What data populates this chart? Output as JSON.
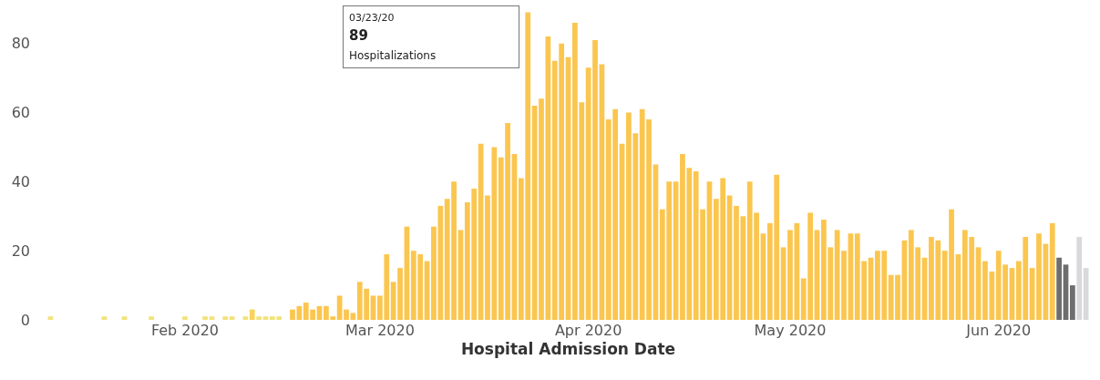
{
  "chart_data": {
    "type": "bar",
    "xlabel": "Hospital Admission Date",
    "x": [
      "2020-01-12",
      "2020-01-20",
      "2020-01-23",
      "2020-01-27",
      "2020-02-01",
      "2020-02-04",
      "2020-02-05",
      "2020-02-07",
      "2020-02-08",
      "2020-02-10",
      "2020-02-11",
      "2020-02-12",
      "2020-02-13",
      "2020-02-14",
      "2020-02-15",
      "2020-02-17",
      "2020-02-18",
      "2020-02-19",
      "2020-02-20",
      "2020-02-21",
      "2020-02-22",
      "2020-02-23",
      "2020-02-24",
      "2020-02-25",
      "2020-02-26",
      "2020-02-27",
      "2020-02-28",
      "2020-02-29",
      "2020-03-01",
      "2020-03-02",
      "2020-03-03",
      "2020-03-04",
      "2020-03-05",
      "2020-03-06",
      "2020-03-07",
      "2020-03-08",
      "2020-03-09",
      "2020-03-10",
      "2020-03-11",
      "2020-03-12",
      "2020-03-13",
      "2020-03-14",
      "2020-03-15",
      "2020-03-16",
      "2020-03-17",
      "2020-03-18",
      "2020-03-19",
      "2020-03-20",
      "2020-03-21",
      "2020-03-22",
      "2020-03-23",
      "2020-03-24",
      "2020-03-25",
      "2020-03-26",
      "2020-03-27",
      "2020-03-28",
      "2020-03-29",
      "2020-03-30",
      "2020-03-31",
      "2020-04-01",
      "2020-04-02",
      "2020-04-03",
      "2020-04-04",
      "2020-04-05",
      "2020-04-06",
      "2020-04-07",
      "2020-04-08",
      "2020-04-09",
      "2020-04-10",
      "2020-04-11",
      "2020-04-12",
      "2020-04-13",
      "2020-04-14",
      "2020-04-15",
      "2020-04-16",
      "2020-04-17",
      "2020-04-18",
      "2020-04-19",
      "2020-04-20",
      "2020-04-21",
      "2020-04-22",
      "2020-04-23",
      "2020-04-24",
      "2020-04-25",
      "2020-04-26",
      "2020-04-27",
      "2020-04-28",
      "2020-04-29",
      "2020-04-30",
      "2020-05-01",
      "2020-05-02",
      "2020-05-03",
      "2020-05-04",
      "2020-05-05",
      "2020-05-06",
      "2020-05-07",
      "2020-05-08",
      "2020-05-09",
      "2020-05-10",
      "2020-05-11",
      "2020-05-12",
      "2020-05-13",
      "2020-05-14",
      "2020-05-15",
      "2020-05-16",
      "2020-05-17",
      "2020-05-18",
      "2020-05-19",
      "2020-05-20",
      "2020-05-21",
      "2020-05-22",
      "2020-05-23",
      "2020-05-24",
      "2020-05-25",
      "2020-05-26",
      "2020-05-27",
      "2020-05-28",
      "2020-05-29",
      "2020-05-30",
      "2020-05-31",
      "2020-06-01",
      "2020-06-02",
      "2020-06-03",
      "2020-06-04",
      "2020-06-05",
      "2020-06-06",
      "2020-06-07",
      "2020-06-08",
      "2020-06-09",
      "2020-06-10",
      "2020-06-11",
      "2020-06-12",
      "2020-06-13",
      "2020-06-14"
    ],
    "values": [
      1,
      1,
      1,
      1,
      1,
      1,
      1,
      1,
      1,
      1,
      3,
      1,
      1,
      1,
      1,
      3,
      4,
      5,
      3,
      4,
      4,
      1,
      7,
      3,
      2,
      11,
      9,
      7,
      7,
      19,
      11,
      15,
      27,
      20,
      19,
      17,
      27,
      33,
      35,
      40,
      26,
      34,
      38,
      51,
      36,
      50,
      47,
      57,
      48,
      41,
      89,
      62,
      64,
      82,
      75,
      80,
      76,
      86,
      63,
      73,
      81,
      74,
      58,
      61,
      51,
      60,
      54,
      61,
      58,
      45,
      32,
      40,
      40,
      48,
      44,
      43,
      32,
      40,
      35,
      41,
      36,
      33,
      30,
      40,
      31,
      25,
      28,
      42,
      21,
      26,
      28,
      12,
      31,
      26,
      29,
      21,
      26,
      20,
      25,
      25,
      17,
      18,
      20,
      20,
      13,
      13,
      23,
      26,
      21,
      18,
      24,
      23,
      20,
      32,
      19,
      26,
      24,
      21,
      17,
      14,
      20,
      16,
      15,
      17,
      24,
      15,
      25,
      22,
      28,
      18,
      16,
      10,
      24,
      15
    ],
    "colors": [
      "#f2e27a",
      "#f2e27a",
      "#f2e27a",
      "#f2e27a",
      "#f2e27a",
      "#f2e27a",
      "#f2e27a",
      "#f2e27a",
      "#f2e27a",
      "#f2e27a",
      "#f8d25c",
      "#f2e27a",
      "#f2e27a",
      "#f2e27a",
      "#f2e27a",
      "#fbc64f",
      "#fbc64f",
      "#fbc64f",
      "#fbc64f",
      "#fbc64f",
      "#fbc64f",
      "#fbc64f",
      "#fbc64f",
      "#fbc64f",
      "#fbc64f",
      "#fbc64f",
      "#fbc64f",
      "#fbc64f",
      "#fbc64f",
      "#fbc64f",
      "#fbc64f",
      "#fbc64f",
      "#fbc64f",
      "#fbc64f",
      "#fbc64f",
      "#fbc64f",
      "#fbc64f",
      "#fbc64f",
      "#fbc64f",
      "#fbc64f",
      "#fbc64f",
      "#fbc64f",
      "#fbc64f",
      "#fbc64f",
      "#fbc64f",
      "#fbc64f",
      "#fbc64f",
      "#fbc64f",
      "#fbc64f",
      "#fbc64f",
      "#fbc64f",
      "#fbc64f",
      "#fbc64f",
      "#fbc64f",
      "#fbc64f",
      "#fbc64f",
      "#fbc64f",
      "#fbc64f",
      "#fbc64f",
      "#fbc64f",
      "#fbc64f",
      "#fbc64f",
      "#fbc64f",
      "#fbc64f",
      "#fbc64f",
      "#fbc64f",
      "#fbc64f",
      "#fbc64f",
      "#fbc64f",
      "#fbc64f",
      "#fbc64f",
      "#fbc64f",
      "#fbc64f",
      "#fbc64f",
      "#fbc64f",
      "#fbc64f",
      "#fbc64f",
      "#fbc64f",
      "#fbc64f",
      "#fbc64f",
      "#fbc64f",
      "#fbc64f",
      "#fbc64f",
      "#fbc64f",
      "#fbc64f",
      "#fbc64f",
      "#fbc64f",
      "#fbc64f",
      "#fbc64f",
      "#fbc64f",
      "#fbc64f",
      "#fbc64f",
      "#fbc64f",
      "#fbc64f",
      "#fbc64f",
      "#fbc64f",
      "#fbc64f",
      "#fbc64f",
      "#fbc64f",
      "#fbc64f",
      "#fbc64f",
      "#fbc64f",
      "#fbc64f",
      "#fbc64f",
      "#fbc64f",
      "#fbc64f",
      "#fbc64f",
      "#fbc64f",
      "#fbc64f",
      "#fbc64f",
      "#fbc64f",
      "#fbc64f",
      "#fbc64f",
      "#fbc64f",
      "#fbc64f",
      "#fbc64f",
      "#fbc64f",
      "#fbc64f",
      "#fbc64f",
      "#fbc64f",
      "#fbc64f",
      "#fbc64f",
      "#fbc64f",
      "#fbc64f",
      "#fbc64f",
      "#fbc64f",
      "#fbc64f",
      "#fbc64f",
      "#fbc64f",
      "#6e6e6e",
      "#6e6e6e",
      "#6e6e6e",
      "#d9d9dc",
      "#d9d9dc"
    ],
    "xlim": [
      "2020-01-11",
      "2020-06-15"
    ],
    "xticks": [
      {
        "value": "2020-02-01",
        "label": "Feb 2020"
      },
      {
        "value": "2020-03-01",
        "label": "Mar 2020"
      },
      {
        "value": "2020-04-01",
        "label": "Apr 2020"
      },
      {
        "value": "2020-05-01",
        "label": "May 2020"
      },
      {
        "value": "2020-06-01",
        "label": "Jun 2020"
      }
    ],
    "ylim": [
      0,
      91
    ],
    "yticks": [
      0,
      20,
      40,
      60,
      80
    ],
    "annotations": [
      "03/23/20\n89\nHospitalizations"
    ]
  }
}
